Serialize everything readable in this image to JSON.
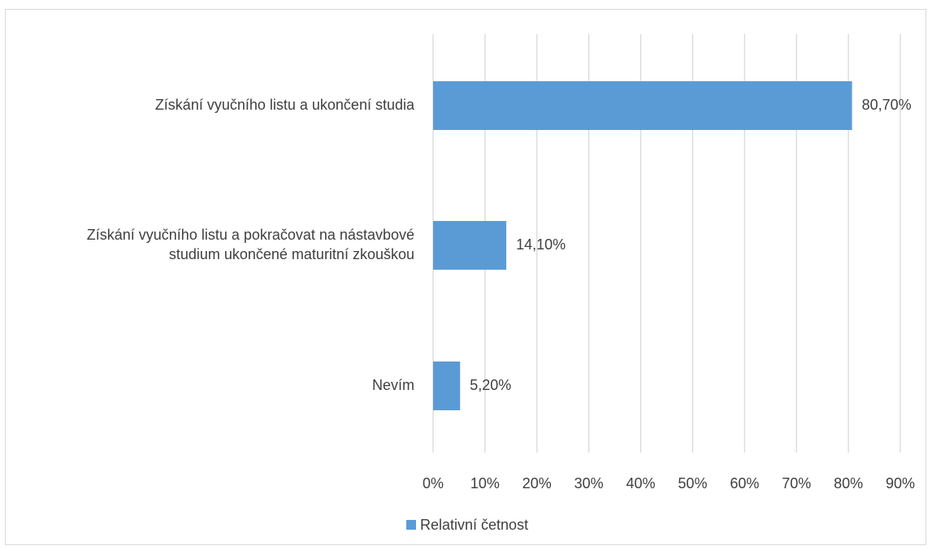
{
  "chart_data": {
    "type": "bar",
    "orientation": "horizontal",
    "categories": [
      [
        "Získání vyučního listu a ukončení studia"
      ],
      [
        "Získání vyučního listu a pokračovat na nástavbové",
        "studium ukončené maturitní zkouškou"
      ],
      [
        "Nevím"
      ]
    ],
    "series": [
      {
        "name": "Relativní četnost",
        "values": [
          80.7,
          14.1,
          5.2
        ],
        "data_labels": [
          "80,70%",
          "14,10%",
          "5,20%"
        ],
        "color": "#5b9bd5"
      }
    ],
    "xlim": [
      0,
      90
    ],
    "x_ticks": [
      0,
      10,
      20,
      30,
      40,
      50,
      60,
      70,
      80,
      90
    ],
    "x_tick_labels": [
      "0%",
      "10%",
      "20%",
      "30%",
      "40%",
      "50%",
      "60%",
      "70%",
      "80%",
      "90%"
    ],
    "grid": "vertical",
    "gridline_color": "#d9d9d9",
    "legend": {
      "position": "bottom",
      "entries": [
        "Relativní četnost"
      ]
    }
  }
}
